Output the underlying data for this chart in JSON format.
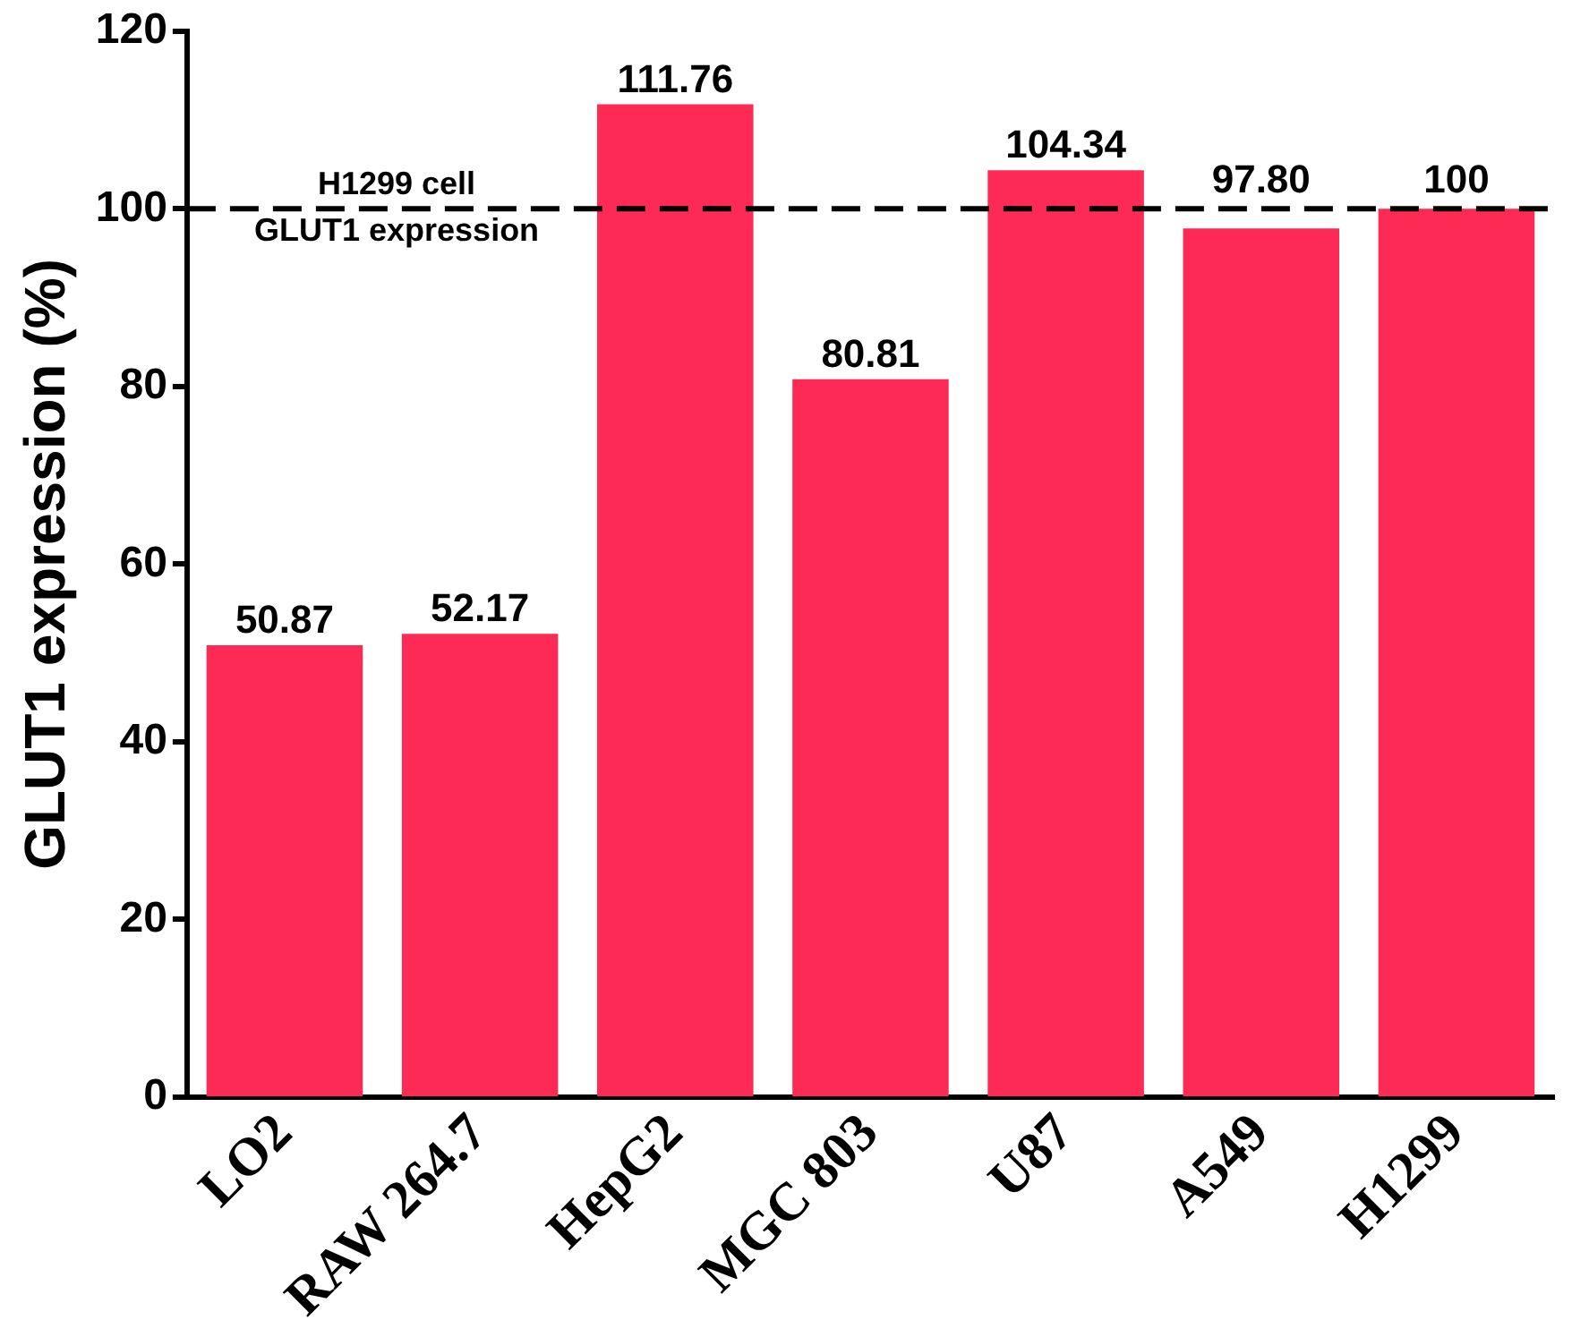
{
  "chart_data": {
    "type": "bar",
    "ylabel": "GLUT1 expression (%)",
    "categories": [
      "LO2",
      "RAW 264.7",
      "HepG2",
      "MGC 803",
      "U87",
      "A549",
      "H1299"
    ],
    "values": [
      50.87,
      52.17,
      111.76,
      80.81,
      104.34,
      97.8,
      100
    ],
    "value_labels": [
      "50.87",
      "52.17",
      "111.76",
      "80.81",
      "104.34",
      "97.80",
      "100"
    ],
    "color": "#fc2a54",
    "ylim": [
      0,
      120
    ],
    "yticks": [
      0,
      20,
      40,
      60,
      80,
      100,
      120
    ],
    "ref_lines": [
      {
        "axis": "y",
        "value": 100,
        "label": "H1299 cell\nGLUT1 expression",
        "color": "#000000",
        "line_style": "dashed"
      }
    ],
    "grid": false,
    "legend": false
  }
}
